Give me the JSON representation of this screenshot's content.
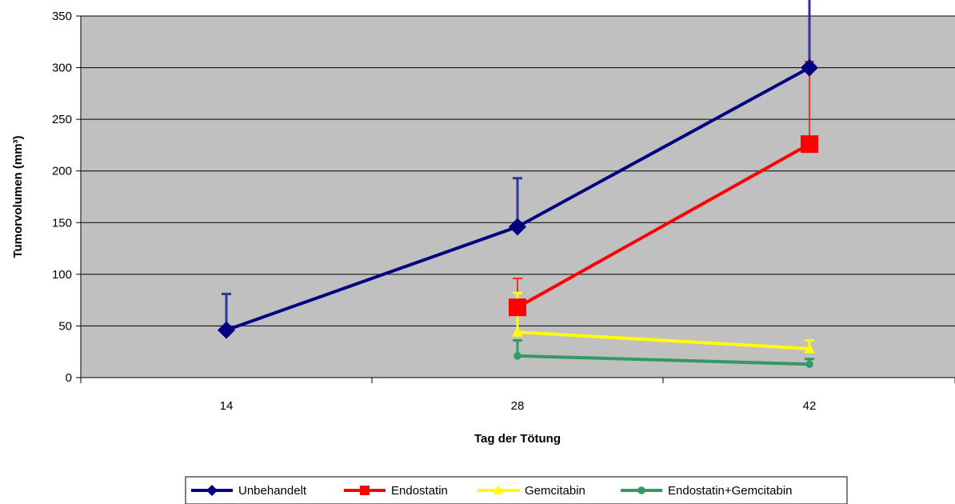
{
  "chart_data": {
    "type": "line",
    "title": "",
    "xlabel": "Tag der Tötung",
    "ylabel": "Tumorvolumen (mm³)",
    "x_tick_labels": [
      "14",
      "28",
      "42"
    ],
    "y_ticks": [
      0,
      50,
      100,
      150,
      200,
      250,
      300,
      350
    ],
    "ylim": [
      0,
      350
    ],
    "grid": "horizontal",
    "plot_background": "#c0c0c0",
    "legend_position": "bottom",
    "series": [
      {
        "name": "Unbehandelt",
        "color": "#000080",
        "errorbar_color": "#333399",
        "marker": "diamond",
        "x": [
          "14",
          "28",
          "42"
        ],
        "values": [
          46,
          146,
          300
        ],
        "error_upper": [
          35,
          47,
          80
        ]
      },
      {
        "name": "Endostatin",
        "color": "#ff0000",
        "errorbar_color": "#ff0000",
        "marker": "square",
        "x": [
          "28",
          "42"
        ],
        "values": [
          68,
          226
        ],
        "error_upper": [
          28,
          80
        ]
      },
      {
        "name": "Gemcitabin",
        "color": "#ffff00",
        "errorbar_color": "#ffff00",
        "marker": "triangle",
        "x": [
          "28",
          "42"
        ],
        "values": [
          44,
          28
        ],
        "error_upper": [
          38,
          8
        ]
      },
      {
        "name": "Endostatin+Gemcitabin",
        "color": "#339966",
        "errorbar_color": "#339966",
        "marker": "circle",
        "x": [
          "28",
          "42"
        ],
        "values": [
          21,
          13
        ],
        "error_upper": [
          15,
          5
        ]
      }
    ]
  }
}
